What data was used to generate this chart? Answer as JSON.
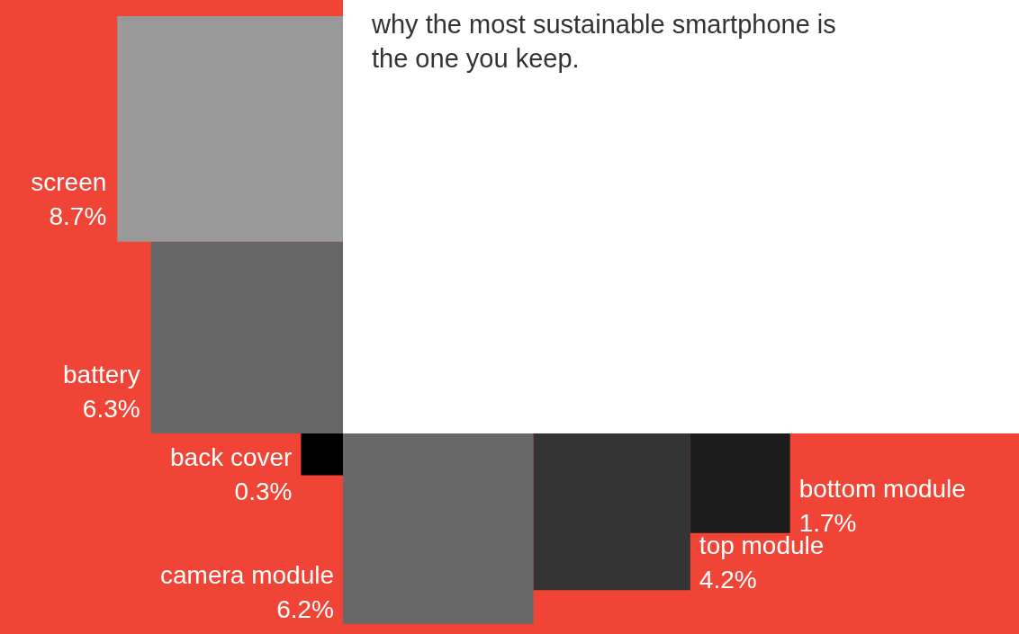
{
  "chart_data": {
    "type": "other",
    "title": "why the most sustainable smartphone is the one you keep.",
    "categories": [
      "battery",
      "screen",
      "back cover",
      "camera module",
      "top module",
      "bottom module"
    ],
    "values": [
      6.3,
      8.7,
      0.3,
      6.2,
      4.2,
      1.7
    ],
    "value_labels": [
      "6.3%",
      "8.7%",
      "0.3%",
      "6.2%",
      "4.2%",
      "1.7%"
    ],
    "colors": [
      "#666666",
      "#999999",
      "#000000",
      "#686868",
      "#333333",
      "#1c1c1c"
    ]
  }
}
